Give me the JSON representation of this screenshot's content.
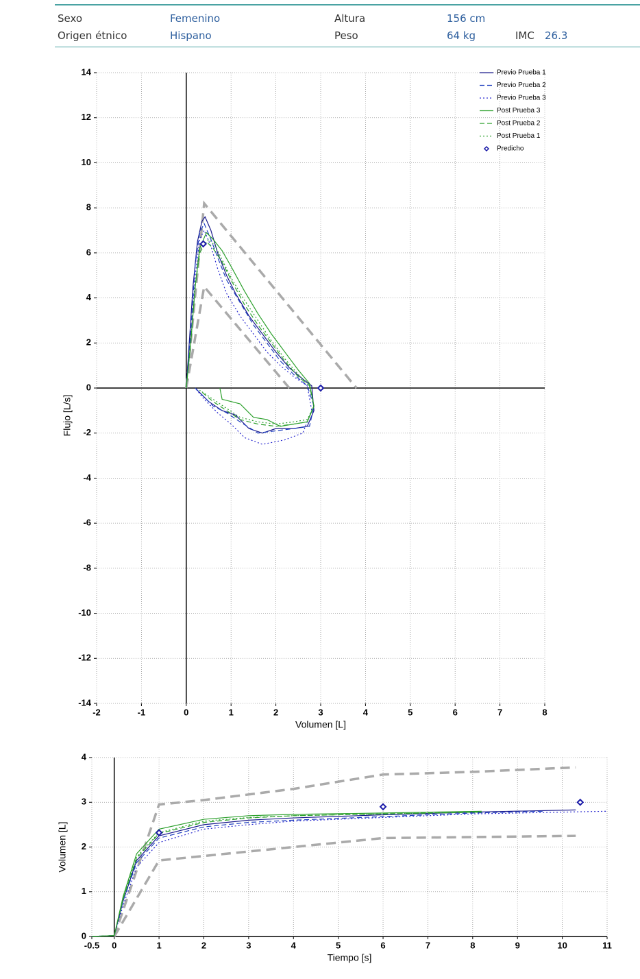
{
  "header": {
    "rows": [
      [
        {
          "label": "Sexo",
          "value": "Femenino"
        },
        {
          "label": "Altura",
          "value": "156 cm"
        }
      ],
      [
        {
          "label": "Origen étnico",
          "value": "Hispano"
        },
        {
          "label": "Peso",
          "value": "64 kg"
        },
        {
          "label": "IMC",
          "value": "26.3"
        }
      ]
    ]
  },
  "chart_data": [
    {
      "type": "line",
      "x_label": "Volumen [L]",
      "y_label": "Flujo [L/s]",
      "xlim": [
        -2,
        8
      ],
      "ylim": [
        -14,
        14
      ],
      "xticks": [
        -2,
        -1,
        0,
        1,
        2,
        3,
        4,
        5,
        6,
        7,
        8
      ],
      "yticks": [
        -14,
        -12,
        -10,
        -8,
        -6,
        -4,
        -2,
        0,
        2,
        4,
        6,
        8,
        10,
        12,
        14
      ],
      "grid": true,
      "legend": "upper right",
      "series": [
        {
          "name": "Previo Prueba 1",
          "color": "#1a1a8c",
          "dash": "solid",
          "x": [
            0,
            0.05,
            0.15,
            0.25,
            0.35,
            0.42,
            0.55,
            0.7,
            0.9,
            1.1,
            1.4,
            1.7,
            2.0,
            2.3,
            2.6,
            2.8,
            2.85,
            2.7,
            2.4,
            2.0,
            1.7,
            1.4,
            1.1,
            0.8,
            0.5,
            0.3,
            0.2
          ],
          "values": [
            0,
            1.5,
            4.5,
            6.5,
            7.4,
            7.6,
            7.0,
            6.0,
            5.0,
            4.2,
            3.2,
            2.4,
            1.6,
            0.9,
            0.4,
            0.1,
            -1.0,
            -1.7,
            -1.8,
            -1.8,
            -2.0,
            -1.8,
            -1.2,
            -1.0,
            -0.6,
            -0.2,
            0
          ]
        },
        {
          "name": "Previo Prueba 2",
          "color": "#1f3fbf",
          "dash": "dashed",
          "x": [
            0,
            0.1,
            0.2,
            0.3,
            0.4,
            0.55,
            0.7,
            0.9,
            1.2,
            1.5,
            1.8,
            2.1,
            2.4,
            2.7,
            2.85,
            2.75,
            2.4,
            2.0,
            1.6,
            1.2,
            0.9,
            0.6,
            0.35,
            0.2
          ],
          "values": [
            0,
            2.5,
            5.5,
            6.9,
            7.3,
            6.6,
            5.8,
            4.8,
            3.8,
            2.8,
            2.0,
            1.2,
            0.6,
            0.1,
            -0.8,
            -1.7,
            -1.8,
            -1.9,
            -2.0,
            -1.5,
            -1.1,
            -0.8,
            -0.3,
            0
          ]
        },
        {
          "name": "Previo Prueba 3",
          "color": "#2a2ad0",
          "dash": "dotted",
          "x": [
            0,
            0.1,
            0.2,
            0.3,
            0.4,
            0.55,
            0.7,
            0.9,
            1.2,
            1.5,
            1.8,
            2.1,
            2.4,
            2.7,
            2.8,
            2.6,
            2.2,
            1.7,
            1.3,
            1.0,
            0.7,
            0.4,
            0.2
          ],
          "values": [
            0,
            2,
            5,
            6.6,
            7.0,
            6.3,
            5.3,
            4.2,
            3.2,
            2.4,
            1.6,
            1.0,
            0.5,
            0.1,
            -1.0,
            -2.0,
            -2.3,
            -2.5,
            -2.2,
            -1.6,
            -1.1,
            -0.5,
            0
          ]
        },
        {
          "name": "Post Prueba 3",
          "color": "#2ca02c",
          "dash": "solid",
          "x": [
            0,
            0.1,
            0.2,
            0.3,
            0.45,
            0.6,
            0.8,
            1.0,
            1.3,
            1.6,
            1.9,
            2.2,
            2.5,
            2.75,
            2.85,
            2.7,
            2.4,
            2.1,
            1.8,
            1.5,
            1.2,
            1.0,
            0.8,
            0.75
          ],
          "values": [
            0,
            2,
            4.5,
            6.2,
            6.9,
            6.6,
            6.1,
            5.4,
            4.3,
            3.3,
            2.4,
            1.6,
            0.8,
            0.2,
            -0.8,
            -1.5,
            -1.6,
            -1.7,
            -1.4,
            -1.3,
            -0.7,
            -0.6,
            -0.5,
            0
          ]
        },
        {
          "name": "Post Prueba 2",
          "color": "#2ca02c",
          "dash": "dashed",
          "x": [
            0,
            0.1,
            0.2,
            0.3,
            0.45,
            0.6,
            0.8,
            1.0,
            1.3,
            1.6,
            1.9,
            2.2,
            2.5,
            2.75,
            2.85,
            2.7,
            2.4,
            2.0,
            1.6,
            1.2,
            0.9,
            0.6,
            0.3
          ],
          "values": [
            0,
            2,
            4.5,
            6.0,
            6.5,
            6.2,
            5.6,
            4.8,
            3.7,
            2.8,
            2.0,
            1.2,
            0.5,
            0.1,
            -0.8,
            -1.5,
            -1.6,
            -1.7,
            -1.6,
            -1.4,
            -1.0,
            -0.6,
            -0.1
          ]
        },
        {
          "name": "Post Prueba 1",
          "color": "#2ca02c",
          "dash": "dotted",
          "x": [
            0,
            0.1,
            0.2,
            0.3,
            0.5,
            0.65,
            0.8,
            1.0,
            1.3,
            1.6,
            1.9,
            2.2,
            2.5,
            2.75,
            2.85,
            2.7,
            2.4,
            2.0,
            1.6,
            1.2,
            0.9,
            0.6,
            0.3
          ],
          "values": [
            0,
            2,
            4.6,
            6.1,
            6.6,
            6.3,
            5.7,
            4.9,
            3.9,
            3.0,
            2.1,
            1.3,
            0.6,
            0.1,
            -0.8,
            -1.4,
            -1.5,
            -1.6,
            -1.5,
            -1.3,
            -0.9,
            -0.5,
            -0.1
          ]
        }
      ],
      "markers": {
        "name": "Predicho",
        "color": "#1a1aa8",
        "x": [
          0.38,
          3.0
        ],
        "values": [
          6.4,
          0
        ]
      },
      "reference_lines": [
        {
          "color": "#aaaaaa",
          "x": [
            0,
            0.4,
            3.8
          ],
          "values": [
            0,
            8.2,
            0
          ]
        },
        {
          "color": "#aaaaaa",
          "x": [
            0,
            0.4,
            2.3
          ],
          "values": [
            0,
            4.5,
            0
          ]
        }
      ]
    },
    {
      "type": "line",
      "x_label": "Tiempo [s]",
      "y_label": "Volumen [L]",
      "xlim": [
        -0.5,
        11
      ],
      "ylim": [
        0,
        4
      ],
      "xticks": [
        -0.5,
        0,
        1,
        2,
        3,
        4,
        5,
        6,
        7,
        8,
        9,
        10,
        11
      ],
      "yticks": [
        0,
        1,
        2,
        3,
        4
      ],
      "grid": true,
      "series": [
        {
          "color": "#1a1a8c",
          "dash": "solid",
          "x": [
            -0.5,
            0,
            0.2,
            0.5,
            1,
            2,
            3,
            4,
            6,
            8,
            10.3
          ],
          "values": [
            0,
            0.02,
            0.8,
            1.7,
            2.25,
            2.5,
            2.6,
            2.65,
            2.72,
            2.78,
            2.83
          ]
        },
        {
          "color": "#1f3fbf",
          "dash": "dashed",
          "x": [
            -0.5,
            0,
            0.2,
            0.5,
            1,
            2,
            3,
            4,
            6,
            8,
            9.6
          ],
          "values": [
            0,
            0.02,
            0.8,
            1.65,
            2.2,
            2.45,
            2.55,
            2.6,
            2.68,
            2.76,
            2.8
          ]
        },
        {
          "color": "#2a2ad0",
          "dash": "dotted",
          "x": [
            -0.5,
            0,
            0.2,
            0.5,
            1,
            2,
            3,
            4,
            6,
            8,
            11
          ],
          "values": [
            0,
            0.02,
            0.7,
            1.55,
            2.1,
            2.4,
            2.5,
            2.58,
            2.66,
            2.74,
            2.8
          ]
        },
        {
          "color": "#2ca02c",
          "dash": "solid",
          "x": [
            -0.5,
            0,
            0.2,
            0.5,
            1,
            2,
            3,
            4,
            6,
            8.2
          ],
          "values": [
            0,
            0.02,
            0.9,
            1.85,
            2.4,
            2.62,
            2.7,
            2.73,
            2.76,
            2.8
          ]
        },
        {
          "color": "#2ca02c",
          "dash": "dashed",
          "x": [
            -0.5,
            0,
            0.2,
            0.5,
            1,
            2,
            3,
            4,
            6,
            8.2
          ],
          "values": [
            0,
            0.02,
            0.85,
            1.75,
            2.3,
            2.55,
            2.65,
            2.7,
            2.74,
            2.78
          ]
        },
        {
          "color": "#2ca02c",
          "dash": "dotted",
          "x": [
            -0.5,
            0,
            0.2,
            0.5,
            1,
            2,
            3,
            4,
            6,
            8.2
          ],
          "values": [
            0,
            0.02,
            0.85,
            1.78,
            2.32,
            2.58,
            2.66,
            2.7,
            2.74,
            2.78
          ]
        }
      ],
      "markers": {
        "color": "#1a1aa8",
        "x": [
          1,
          6,
          10.4
        ],
        "values": [
          2.32,
          2.9,
          3.0
        ]
      },
      "reference_lines": [
        {
          "color": "#aaaaaa",
          "x": [
            0,
            1,
            2,
            4,
            6,
            8,
            10.3
          ],
          "values": [
            0,
            2.95,
            3.05,
            3.3,
            3.62,
            3.68,
            3.78
          ]
        },
        {
          "color": "#aaaaaa",
          "x": [
            0,
            1,
            4,
            6,
            10.3
          ],
          "values": [
            0,
            1.7,
            2.0,
            2.2,
            2.25
          ]
        }
      ]
    }
  ]
}
